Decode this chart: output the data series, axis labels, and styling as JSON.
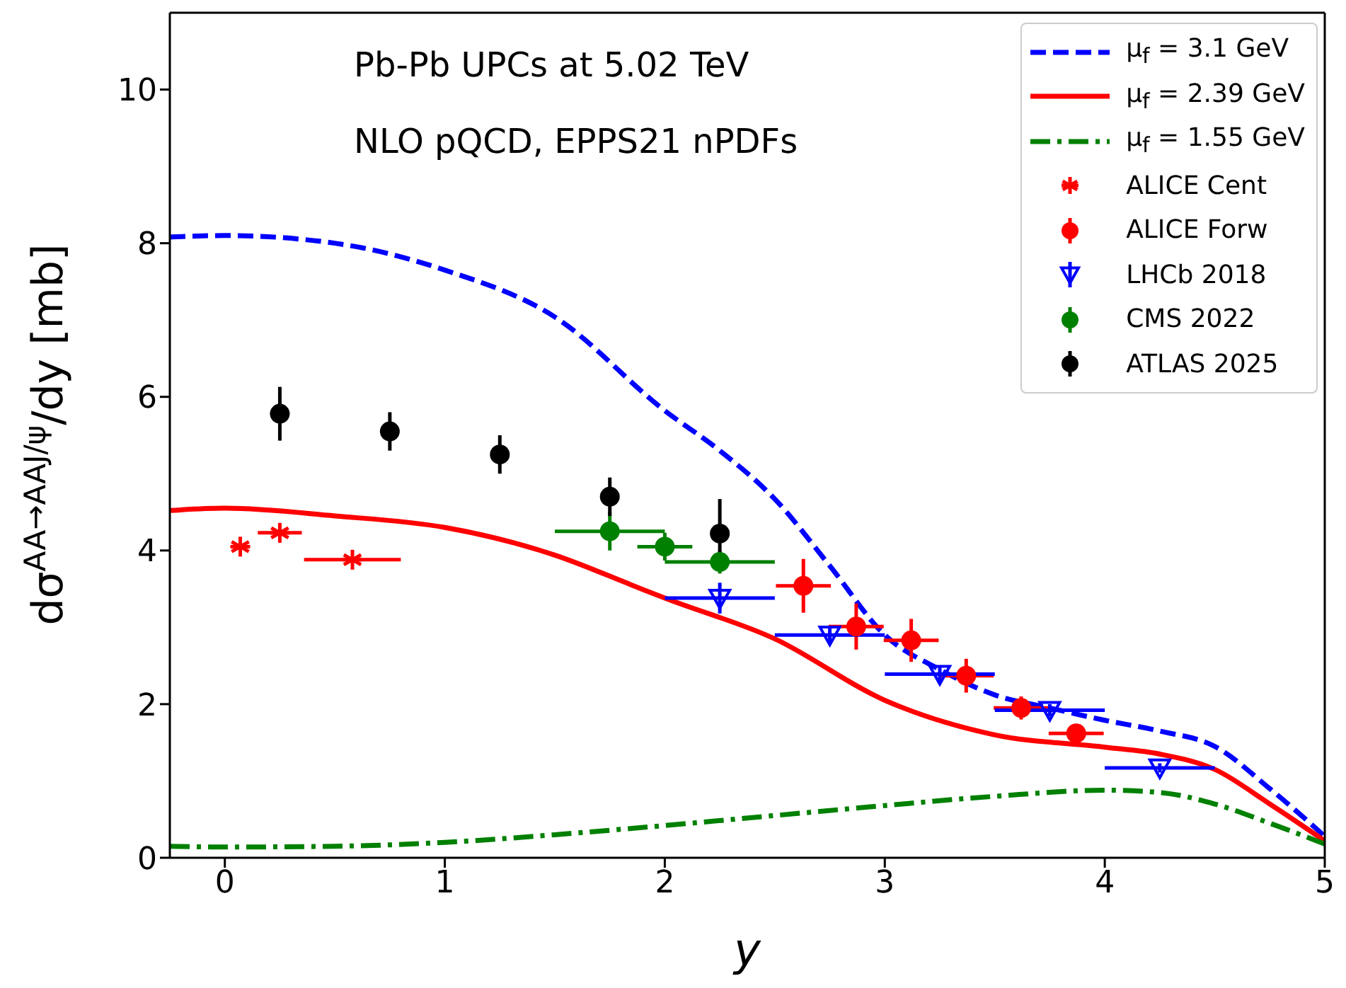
{
  "chart_data": {
    "type": "line",
    "xlabel": "y",
    "ylabel": "dσ$^{AA→AAJ/ψ}$/dy [mb]",
    "annotations": [
      "Pb-Pb UPCs at 5.02 TeV",
      "NLO pQCD, EPPS21 nPDFs"
    ],
    "xlim": [
      -0.25,
      5
    ],
    "xticks": [
      0,
      1,
      2,
      3,
      4,
      5
    ],
    "ylim": [
      0,
      11
    ],
    "yticks": [
      0,
      2,
      4,
      6,
      8,
      10
    ],
    "grid": false,
    "legend": "top right",
    "series": [
      {
        "name": "μ$_{f}$ = 3.1 GeV",
        "color": "#0000ff",
        "line_style": "dashed",
        "marker": "none",
        "x": [
          -0.25,
          0,
          0.5,
          1,
          1.5,
          2,
          2.25,
          2.5,
          2.75,
          3,
          3.25,
          3.5,
          3.75,
          4,
          4.25,
          4.5,
          4.75,
          5
        ],
        "values": [
          8.08,
          8.1,
          8.0,
          7.65,
          7.04,
          5.82,
          5.3,
          4.67,
          3.8,
          2.9,
          2.45,
          2.12,
          1.95,
          1.79,
          1.65,
          1.45,
          0.9,
          0.28
        ]
      },
      {
        "name": "μ$_{f}$ = 2.39 GeV",
        "color": "#ff0000",
        "line_style": "solid",
        "marker": "none",
        "x": [
          -0.25,
          0,
          0.5,
          1,
          1.5,
          1.85,
          2,
          2.5,
          3,
          3.5,
          4,
          4.25,
          4.5,
          4.75,
          5
        ],
        "values": [
          4.52,
          4.55,
          4.45,
          4.3,
          3.94,
          3.55,
          3.38,
          2.85,
          2.05,
          1.6,
          1.44,
          1.35,
          1.15,
          0.7,
          0.22
        ]
      },
      {
        "name": "μ$_{f}$ = 1.55 GeV",
        "color": "#008000",
        "line_style": "dotted",
        "marker": "none",
        "x": [
          -0.25,
          0,
          0.5,
          1,
          1.5,
          2,
          2.5,
          3,
          3.5,
          4,
          4.25,
          4.5,
          4.75,
          5
        ],
        "values": [
          0.15,
          0.14,
          0.15,
          0.2,
          0.3,
          0.42,
          0.55,
          0.68,
          0.8,
          0.88,
          0.85,
          0.7,
          0.45,
          0.18
        ]
      },
      {
        "name": "ALICE Cent",
        "type": "scatter",
        "color": "#ff0000",
        "marker": "cross",
        "x": [
          0.07,
          0.25,
          0.58
        ],
        "values": [
          4.05,
          4.23,
          3.88
        ],
        "xerrors": [
          null,
          0.1,
          0.22
        ]
      },
      {
        "name": "ALICE Forw",
        "type": "scatter",
        "color": "#ff0000",
        "marker": "circle",
        "x": [
          2.63,
          2.87,
          3.12,
          3.37,
          3.62,
          3.87
        ],
        "values": [
          3.54,
          3.01,
          2.83,
          2.37,
          1.95,
          1.62
        ],
        "errors": [
          0.35,
          0.3,
          0.28,
          0.22,
          0.15,
          0.1
        ],
        "xerrors": [
          0.125,
          0.125,
          0.125,
          0.125,
          0.125,
          0.125
        ]
      },
      {
        "name": "LHCb 2018",
        "type": "scatter",
        "color": "#0000ff",
        "marker": "triangle",
        "x": [
          2.25,
          2.75,
          3.25,
          3.75,
          4.25
        ],
        "values": [
          3.38,
          2.9,
          2.39,
          1.92,
          1.17
        ],
        "errors": [
          0.2,
          0.12,
          0.1,
          0.08,
          0.06
        ],
        "xerrors": [
          0.25,
          0.25,
          0.25,
          0.25,
          0.25
        ]
      },
      {
        "name": "CMS 2022",
        "type": "scatter",
        "color": "#008000",
        "marker": "circle",
        "x": [
          1.75,
          2.0,
          2.25
        ],
        "values": [
          4.25,
          4.05,
          3.85
        ],
        "errors": [
          0.25,
          0.18,
          0.15
        ],
        "xerrors": [
          0.25,
          0.125,
          0.25
        ]
      },
      {
        "name": "ATLAS 2025",
        "type": "scatter",
        "color": "#000000",
        "marker": "circle",
        "x": [
          0.25,
          0.75,
          1.25,
          1.75,
          2.25
        ],
        "values": [
          5.78,
          5.55,
          5.25,
          4.7,
          4.22
        ],
        "errors": [
          0.35,
          0.25,
          0.25,
          0.25,
          0.45
        ]
      }
    ]
  }
}
